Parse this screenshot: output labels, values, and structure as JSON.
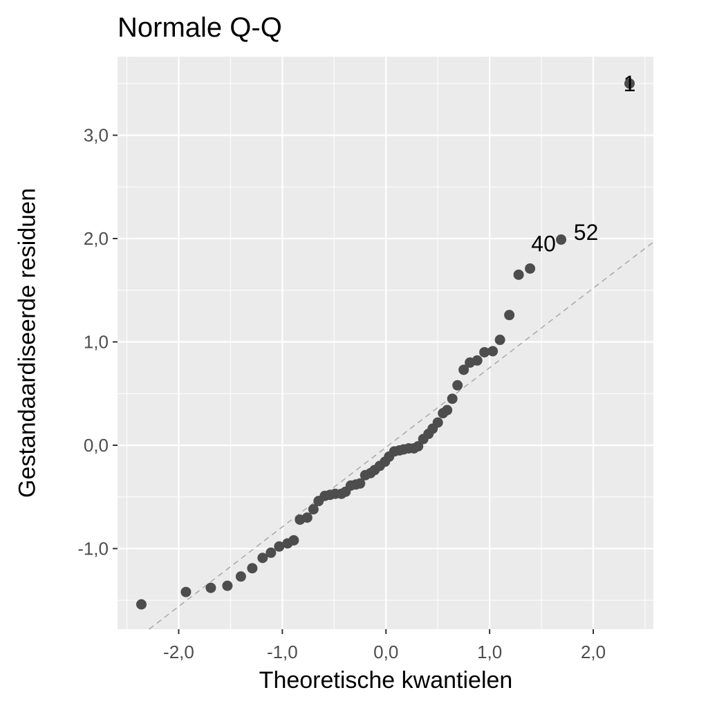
{
  "chart_data": {
    "type": "scatter",
    "title": "Normale Q-Q",
    "xlabel": "Theoretische kwantielen",
    "ylabel": "Gestandaardiseerde residuen",
    "xlim": [
      -2.59,
      2.58
    ],
    "ylim": [
      -1.78,
      3.76
    ],
    "grid": true,
    "x_ticks": [
      -2,
      -1,
      0,
      1,
      2
    ],
    "x_tick_labels": [
      "-2,0",
      "-1,0",
      "0,0",
      "1,0",
      "2,0"
    ],
    "y_ticks": [
      -1,
      0,
      1,
      2,
      3
    ],
    "y_tick_labels": [
      "-1,0",
      "0,0",
      "1,0",
      "2,0",
      "3,0"
    ],
    "point_color": "#4d4d4d",
    "panel_background": "#ebebeb",
    "reference_line": {
      "slope": 0.77,
      "intercept": -0.02,
      "style": "dashed",
      "color": "#a8a8a8"
    },
    "points": [
      [
        -2.36,
        -1.54
      ],
      [
        -1.93,
        -1.42
      ],
      [
        -1.69,
        -1.38
      ],
      [
        -1.53,
        -1.36
      ],
      [
        -1.4,
        -1.27
      ],
      [
        -1.29,
        -1.19
      ],
      [
        -1.19,
        -1.09
      ],
      [
        -1.11,
        -1.04
      ],
      [
        -1.03,
        -0.98
      ],
      [
        -0.95,
        -0.95
      ],
      [
        -0.89,
        -0.92
      ],
      [
        -0.83,
        -0.72
      ],
      [
        -0.76,
        -0.7
      ],
      [
        -0.7,
        -0.62
      ],
      [
        -0.65,
        -0.54
      ],
      [
        -0.59,
        -0.49
      ],
      [
        -0.54,
        -0.48
      ],
      [
        -0.49,
        -0.47
      ],
      [
        -0.43,
        -0.47
      ],
      [
        -0.39,
        -0.45
      ],
      [
        -0.34,
        -0.39
      ],
      [
        -0.29,
        -0.38
      ],
      [
        -0.25,
        -0.37
      ],
      [
        -0.2,
        -0.29
      ],
      [
        -0.15,
        -0.27
      ],
      [
        -0.11,
        -0.24
      ],
      [
        -0.06,
        -0.2
      ],
      [
        -0.01,
        -0.16
      ],
      [
        0.03,
        -0.11
      ],
      [
        0.08,
        -0.06
      ],
      [
        0.13,
        -0.05
      ],
      [
        0.17,
        -0.04
      ],
      [
        0.22,
        -0.03
      ],
      [
        0.27,
        -0.03
      ],
      [
        0.31,
        -0.01
      ],
      [
        0.36,
        0.06
      ],
      [
        0.41,
        0.11
      ],
      [
        0.45,
        0.16
      ],
      [
        0.5,
        0.22
      ],
      [
        0.55,
        0.31
      ],
      [
        0.59,
        0.34
      ],
      [
        0.64,
        0.45
      ],
      [
        0.69,
        0.58
      ],
      [
        0.75,
        0.73
      ],
      [
        0.81,
        0.8
      ],
      [
        0.88,
        0.82
      ],
      [
        0.95,
        0.9
      ],
      [
        1.03,
        0.91
      ],
      [
        1.1,
        1.02
      ],
      [
        1.19,
        1.26
      ],
      [
        1.28,
        1.65
      ],
      [
        1.39,
        1.71
      ],
      [
        1.69,
        1.99
      ],
      [
        2.35,
        3.5
      ]
    ],
    "annotations": [
      {
        "text": "40",
        "x": 1.52,
        "y": 1.95
      },
      {
        "text": "52",
        "x": 1.93,
        "y": 2.06
      },
      {
        "text": "1",
        "x": 2.35,
        "y": 3.5
      }
    ]
  }
}
